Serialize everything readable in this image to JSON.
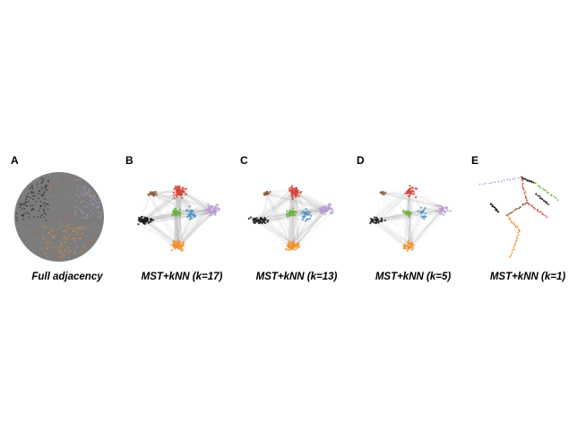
{
  "panels": [
    {
      "letter": "A",
      "caption": "Full adjacency",
      "style": "full"
    },
    {
      "letter": "B",
      "caption": "MST+kNN (k=17)",
      "style": "k17"
    },
    {
      "letter": "C",
      "caption": "MST+kNN (k=13)",
      "style": "k13"
    },
    {
      "letter": "D",
      "caption": "MST+kNN (k=5)",
      "style": "k5"
    },
    {
      "letter": "E",
      "caption": "MST+kNN (k=1)",
      "style": "k1"
    }
  ],
  "colors": {
    "red": "#d6453a",
    "purple": "#b79bd1",
    "green": "#6db33f",
    "orange": "#f0922b",
    "black": "#1a1a1a",
    "blue": "#4a90c8",
    "brown": "#8b5a3c",
    "gray_edges": "#888888"
  }
}
